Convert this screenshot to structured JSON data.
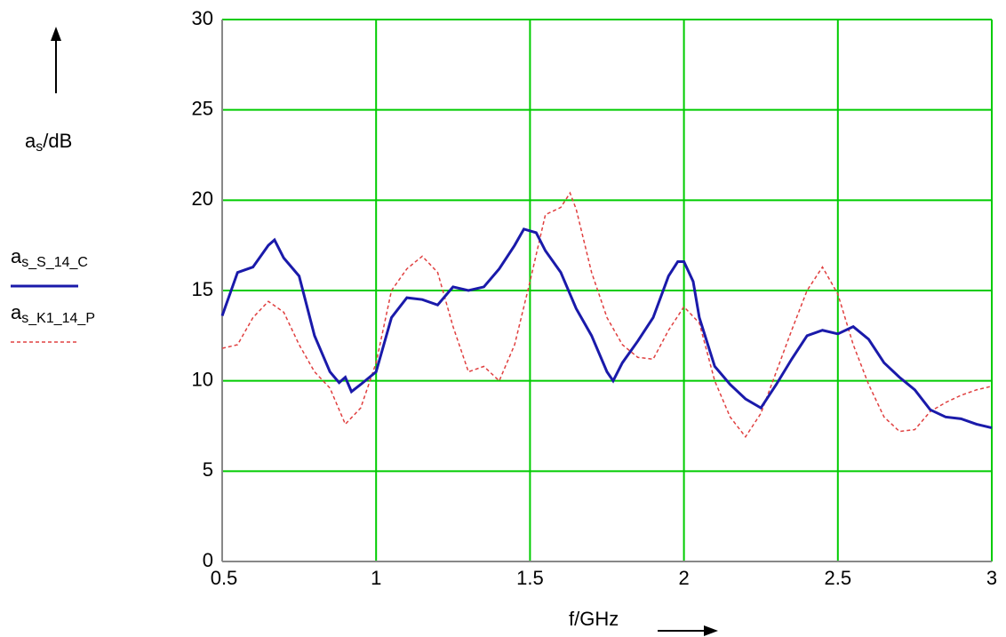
{
  "chart_data": {
    "type": "line",
    "y_label": {
      "symbol": "a",
      "sub": "s",
      "unit": "/dB"
    },
    "x_label": "f/GHz",
    "xlim": [
      0.5,
      3
    ],
    "xticks": [
      0.5,
      1,
      1.5,
      2,
      2.5,
      3
    ],
    "ylim": [
      0,
      30
    ],
    "yticks": [
      0,
      5,
      10,
      15,
      20,
      25,
      30
    ],
    "grid": true,
    "grid_color": "#00cc00",
    "legend": "left",
    "series": [
      {
        "symbol": "a",
        "name": "s_S_14_C",
        "color": "#1a1aaa",
        "style": "solid",
        "x": [
          0.5,
          0.55,
          0.6,
          0.65,
          0.67,
          0.7,
          0.75,
          0.8,
          0.85,
          0.88,
          0.9,
          0.92,
          0.95,
          1.0,
          1.05,
          1.1,
          1.15,
          1.2,
          1.25,
          1.3,
          1.35,
          1.4,
          1.45,
          1.48,
          1.52,
          1.55,
          1.6,
          1.65,
          1.7,
          1.75,
          1.77,
          1.8,
          1.85,
          1.9,
          1.95,
          1.98,
          2.0,
          2.03,
          2.05,
          2.1,
          2.15,
          2.2,
          2.25,
          2.3,
          2.35,
          2.4,
          2.45,
          2.5,
          2.55,
          2.6,
          2.65,
          2.7,
          2.75,
          2.8,
          2.85,
          2.9,
          2.95,
          3.0
        ],
        "values": [
          13.6,
          16.0,
          16.3,
          17.5,
          17.8,
          16.8,
          15.8,
          12.5,
          10.5,
          9.9,
          10.2,
          9.4,
          9.8,
          10.5,
          13.5,
          14.6,
          14.5,
          14.2,
          15.2,
          15.0,
          15.2,
          16.2,
          17.5,
          18.4,
          18.2,
          17.2,
          16.0,
          14.0,
          12.5,
          10.5,
          10.0,
          11.0,
          12.2,
          13.5,
          15.8,
          16.6,
          16.6,
          15.5,
          13.5,
          10.8,
          9.8,
          9.0,
          8.5,
          9.8,
          11.2,
          12.5,
          12.8,
          12.6,
          13.0,
          12.3,
          11.0,
          10.2,
          9.5,
          8.4,
          8.0,
          7.9,
          7.6,
          7.4
        ]
      },
      {
        "symbol": "a",
        "name": "s_K1_14_P",
        "color": "#e04040",
        "style": "dashed",
        "x": [
          0.5,
          0.55,
          0.6,
          0.65,
          0.7,
          0.75,
          0.8,
          0.85,
          0.9,
          0.95,
          1.0,
          1.05,
          1.1,
          1.15,
          1.2,
          1.25,
          1.3,
          1.35,
          1.4,
          1.45,
          1.5,
          1.55,
          1.6,
          1.63,
          1.65,
          1.7,
          1.75,
          1.8,
          1.85,
          1.9,
          1.95,
          2.0,
          2.05,
          2.1,
          2.15,
          2.2,
          2.25,
          2.3,
          2.35,
          2.4,
          2.45,
          2.5,
          2.55,
          2.6,
          2.65,
          2.7,
          2.75,
          2.8,
          2.85,
          2.9,
          2.95,
          3.0
        ],
        "values": [
          11.8,
          12.0,
          13.5,
          14.4,
          13.8,
          12.0,
          10.5,
          9.6,
          7.6,
          8.5,
          11.0,
          15.0,
          16.2,
          16.9,
          16.0,
          13.0,
          10.5,
          10.8,
          10.0,
          12.0,
          15.5,
          19.2,
          19.6,
          20.4,
          19.5,
          16.0,
          13.5,
          12.0,
          11.3,
          11.2,
          12.8,
          14.1,
          13.2,
          10.0,
          8.0,
          6.9,
          8.2,
          10.5,
          12.8,
          15.0,
          16.3,
          14.8,
          12.0,
          9.8,
          8.0,
          7.2,
          7.3,
          8.3,
          8.8,
          9.2,
          9.5,
          9.7
        ]
      }
    ]
  }
}
